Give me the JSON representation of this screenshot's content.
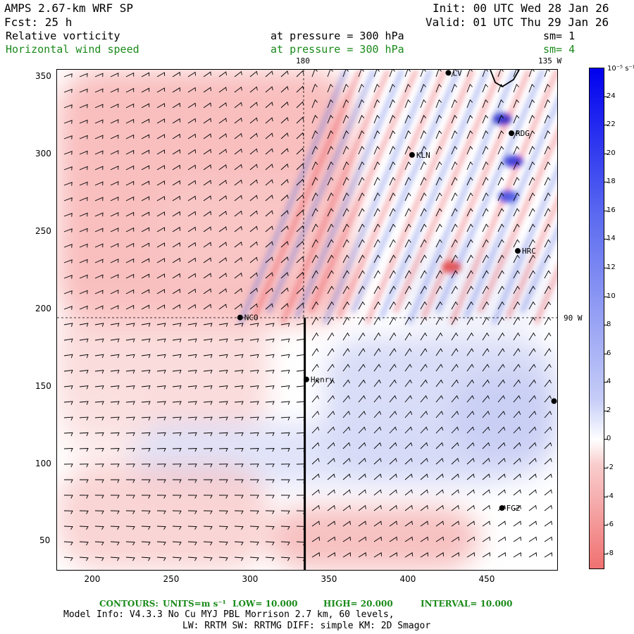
{
  "header": {
    "model": "AMPS 2.67-km WRF SP",
    "init": "Init: 00 UTC Wed 28 Jan 26",
    "fcst": "Fcst:   25 h",
    "valid": "Valid: 01 UTC Thu 29 Jan 26",
    "field1_name": "Relative vorticity",
    "field1_level": "at pressure =  300 hPa",
    "field1_sm": "sm= 1",
    "field2_name": "Horizontal wind speed",
    "field2_level": "at pressure =  300 hPa",
    "field2_sm": "sm= 4"
  },
  "map": {
    "meridian_labels": [
      "180",
      "135 W"
    ],
    "parallel_label": "90 W",
    "x_ticks": [
      "200",
      "250",
      "300",
      "350",
      "400",
      "450"
    ],
    "y_ticks": [
      "350",
      "300",
      "250",
      "200",
      "150",
      "100",
      "50"
    ],
    "stations": [
      {
        "name": "LV",
        "x": 425,
        "y": 353
      },
      {
        "name": "RDG",
        "x": 465,
        "y": 314
      },
      {
        "name": "KLN",
        "x": 402,
        "y": 300
      },
      {
        "name": "HRC",
        "x": 469,
        "y": 238
      },
      {
        "name": "NCO",
        "x": 293,
        "y": 195
      },
      {
        "name": "Henry",
        "x": 335,
        "y": 155
      },
      {
        "name": "",
        "x": 492,
        "y": 141
      },
      {
        "name": "FG2",
        "x": 459,
        "y": 72
      }
    ],
    "section_line": {
      "x": 334,
      "y_start": 32,
      "y_end": 195
    }
  },
  "colorbar": {
    "units": "10⁻⁵ s⁻¹",
    "labels": [
      "24",
      "22",
      "20",
      "18",
      "16",
      "14",
      "12",
      "10",
      "8",
      "6",
      "4",
      "2",
      "0",
      "-2",
      "-4",
      "-6",
      "-8"
    ],
    "colors": {
      "strong_positive": "#0000ee",
      "zero": "#ffffff",
      "strong_negative": "#f07070"
    }
  },
  "footer": {
    "contours_label": "CONTOURS:",
    "units_label": "UNITS=m s⁻¹",
    "low": "LOW=  10.000",
    "high": "HIGH=  20.000",
    "interval": "INTERVAL=  10.000",
    "model_info": "Model Info: V4.3.3    No Cu   MYJ PBL  Morrison         2.7 km,  60 levels,",
    "model_info2": "LW: RRTM SW: RRTMG   DIFF: simple KM: 2D Smagor"
  }
}
